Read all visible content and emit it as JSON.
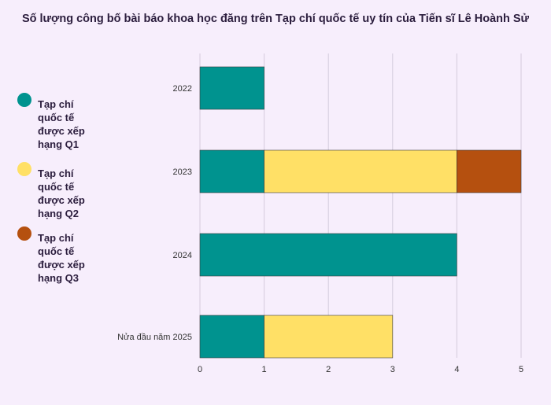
{
  "title": "Số lượng công bố bài báo khoa học đăng trên Tạp chí quốc tế uy tín của Tiến sĩ Lê Hoành Sử",
  "legend": [
    {
      "label": "Tạp chí quốc tế được xếp hạng Q1",
      "color": "#00938f"
    },
    {
      "label": "Tạp chí quốc tế được xếp hạng Q2",
      "color": "#ffe066"
    },
    {
      "label": "Tạp chí quốc tế được xếp hạng Q3",
      "color": "#b5500f"
    }
  ],
  "chart_data": {
    "type": "bar",
    "orientation": "horizontal",
    "stacked": true,
    "title": "Số lượng công bố bài báo khoa học đăng trên Tạp chí quốc tế uy tín của Tiến sĩ Lê Hoành Sử",
    "categories": [
      "2022",
      "2023",
      "2024",
      "Nửa đầu năm 2025"
    ],
    "series": [
      {
        "name": "Tạp chí quốc tế được xếp hạng Q1",
        "color": "#00938f",
        "values": [
          1,
          1,
          4,
          1
        ]
      },
      {
        "name": "Tạp chí quốc tế được xếp hạng Q2",
        "color": "#ffe066",
        "values": [
          0,
          3,
          0,
          2
        ]
      },
      {
        "name": "Tạp chí quốc tế được xếp hạng Q3",
        "color": "#b5500f",
        "values": [
          0,
          1,
          0,
          0
        ]
      }
    ],
    "xticks": [
      "0",
      "1",
      "2",
      "3",
      "4",
      "5"
    ],
    "xlim": [
      0,
      5
    ],
    "grid": true,
    "legend_position": "left"
  }
}
